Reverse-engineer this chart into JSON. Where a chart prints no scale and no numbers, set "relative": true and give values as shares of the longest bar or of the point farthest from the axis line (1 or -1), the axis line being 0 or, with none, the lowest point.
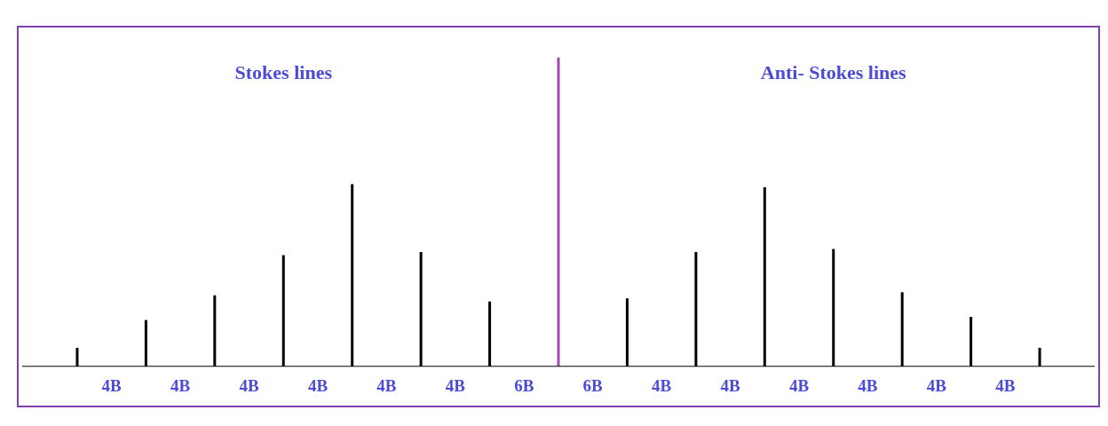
{
  "chart_data": {
    "type": "bar",
    "relative": true,
    "categories": [
      null,
      null,
      null,
      null,
      null,
      null,
      null,
      null,
      null,
      null,
      null,
      null,
      null,
      null,
      null
    ],
    "values": [
      0.06,
      0.15,
      0.23,
      0.36,
      0.59,
      0.37,
      0.21,
      1,
      0.22,
      0.37,
      0.58,
      0.38,
      0.24,
      0.16,
      0.06
    ],
    "colors": [
      "#000000",
      "#000000",
      "#000000",
      "#000000",
      "#000000",
      "#000000",
      "#000000",
      "#a04cb0",
      "#000000",
      "#000000",
      "#000000",
      "#000000",
      "#000000",
      "#000000",
      "#000000"
    ],
    "annotations": [
      "Stokes lines",
      "Anti- Stokes lines",
      "4B",
      "4B",
      "4B",
      "4B",
      "4B",
      "4B",
      "6B",
      "6B",
      "4B",
      "4B",
      "4B",
      "4B",
      "4B",
      "4B"
    ]
  }
}
